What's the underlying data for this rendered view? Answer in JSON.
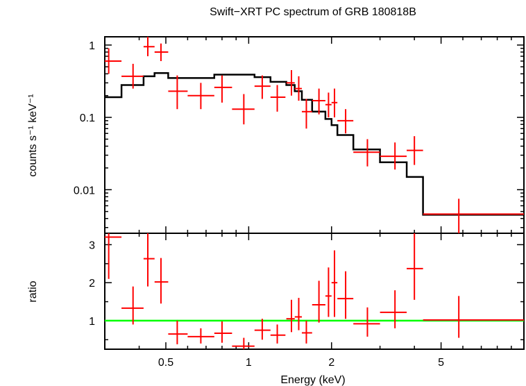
{
  "chart_data": {
    "type": "scatter",
    "title": "Swift−XRT PC spectrum of GRB 180818B",
    "xlabel": "Energy (keV)",
    "x_scale": "log",
    "xlim": [
      0.3,
      10
    ],
    "x_ticks": [
      0.5,
      1,
      2,
      5
    ],
    "x_tick_labels": [
      "0.5",
      "1",
      "2",
      "5"
    ],
    "colors": {
      "data": "#ff0000",
      "model": "#000000",
      "ratio_line": "#00ff00"
    },
    "panels": [
      {
        "name": "spectrum",
        "ylabel": "counts s⁻¹ keV⁻¹",
        "y_scale": "log",
        "ylim": [
          0.0025,
          1.3
        ],
        "y_ticks": [
          1,
          0.1,
          0.01
        ],
        "y_tick_labels": [
          "1",
          "0.1",
          "0.01"
        ],
        "data_points": [
          {
            "x": 0.31,
            "xlo": 0.3,
            "xhi": 0.345,
            "y": 0.6,
            "ylo": 0.4,
            "yhi": 0.9
          },
          {
            "x": 0.38,
            "xlo": 0.345,
            "xhi": 0.415,
            "y": 0.37,
            "ylo": 0.25,
            "yhi": 0.55
          },
          {
            "x": 0.43,
            "xlo": 0.415,
            "xhi": 0.455,
            "y": 0.95,
            "ylo": 0.7,
            "yhi": 1.3
          },
          {
            "x": 0.48,
            "xlo": 0.455,
            "xhi": 0.51,
            "y": 0.8,
            "ylo": 0.6,
            "yhi": 1.05
          },
          {
            "x": 0.55,
            "xlo": 0.51,
            "xhi": 0.6,
            "y": 0.23,
            "ylo": 0.13,
            "yhi": 0.38
          },
          {
            "x": 0.67,
            "xlo": 0.6,
            "xhi": 0.75,
            "y": 0.2,
            "ylo": 0.13,
            "yhi": 0.3
          },
          {
            "x": 0.8,
            "xlo": 0.75,
            "xhi": 0.87,
            "y": 0.26,
            "ylo": 0.16,
            "yhi": 0.38
          },
          {
            "x": 0.96,
            "xlo": 0.87,
            "xhi": 1.05,
            "y": 0.13,
            "ylo": 0.08,
            "yhi": 0.21
          },
          {
            "x": 1.12,
            "xlo": 1.05,
            "xhi": 1.2,
            "y": 0.27,
            "ylo": 0.18,
            "yhi": 0.38
          },
          {
            "x": 1.27,
            "xlo": 1.2,
            "xhi": 1.36,
            "y": 0.19,
            "ylo": 0.12,
            "yhi": 0.28
          },
          {
            "x": 1.43,
            "xlo": 1.37,
            "xhi": 1.47,
            "y": 0.3,
            "ylo": 0.2,
            "yhi": 0.45
          },
          {
            "x": 1.52,
            "xlo": 1.47,
            "xhi": 1.56,
            "y": 0.25,
            "ylo": 0.17,
            "yhi": 0.37
          },
          {
            "x": 1.62,
            "xlo": 1.56,
            "xhi": 1.7,
            "y": 0.12,
            "ylo": 0.07,
            "yhi": 0.18
          },
          {
            "x": 1.8,
            "xlo": 1.7,
            "xhi": 1.9,
            "y": 0.17,
            "ylo": 0.11,
            "yhi": 0.25
          },
          {
            "x": 1.95,
            "xlo": 1.9,
            "xhi": 2.0,
            "y": 0.15,
            "ylo": 0.1,
            "yhi": 0.22
          },
          {
            "x": 2.05,
            "xlo": 2.0,
            "xhi": 2.1,
            "y": 0.16,
            "ylo": 0.1,
            "yhi": 0.25
          },
          {
            "x": 2.25,
            "xlo": 2.1,
            "xhi": 2.4,
            "y": 0.09,
            "ylo": 0.06,
            "yhi": 0.13
          },
          {
            "x": 2.7,
            "xlo": 2.4,
            "xhi": 3.0,
            "y": 0.033,
            "ylo": 0.021,
            "yhi": 0.05
          },
          {
            "x": 3.4,
            "xlo": 3.0,
            "xhi": 3.75,
            "y": 0.029,
            "ylo": 0.019,
            "yhi": 0.045
          },
          {
            "x": 4.0,
            "xlo": 3.75,
            "xhi": 4.3,
            "y": 0.035,
            "ylo": 0.022,
            "yhi": 0.055
          },
          {
            "x": 5.8,
            "xlo": 4.3,
            "xhi": 10.0,
            "y": 0.0046,
            "ylo": 0.0025,
            "yhi": 0.0075
          }
        ],
        "model_steps": [
          {
            "xlo": 0.3,
            "xhi": 0.345,
            "y": 0.19
          },
          {
            "xlo": 0.345,
            "xhi": 0.415,
            "y": 0.28
          },
          {
            "xlo": 0.415,
            "xhi": 0.455,
            "y": 0.37
          },
          {
            "xlo": 0.455,
            "xhi": 0.51,
            "y": 0.41
          },
          {
            "xlo": 0.51,
            "xhi": 0.75,
            "y": 0.35
          },
          {
            "xlo": 0.75,
            "xhi": 1.05,
            "y": 0.39
          },
          {
            "xlo": 1.05,
            "xhi": 1.2,
            "y": 0.36
          },
          {
            "xlo": 1.2,
            "xhi": 1.37,
            "y": 0.31
          },
          {
            "xlo": 1.37,
            "xhi": 1.47,
            "y": 0.28
          },
          {
            "xlo": 1.47,
            "xhi": 1.56,
            "y": 0.23
          },
          {
            "xlo": 1.56,
            "xhi": 1.7,
            "y": 0.175
          },
          {
            "xlo": 1.7,
            "xhi": 1.9,
            "y": 0.12
          },
          {
            "xlo": 1.9,
            "xhi": 2.0,
            "y": 0.095
          },
          {
            "xlo": 2.0,
            "xhi": 2.1,
            "y": 0.078
          },
          {
            "xlo": 2.1,
            "xhi": 2.4,
            "y": 0.057
          },
          {
            "xlo": 2.4,
            "xhi": 3.0,
            "y": 0.036
          },
          {
            "xlo": 3.0,
            "xhi": 3.75,
            "y": 0.024
          },
          {
            "xlo": 3.75,
            "xhi": 4.3,
            "y": 0.015
          },
          {
            "xlo": 4.3,
            "xhi": 10.0,
            "y": 0.0045
          }
        ]
      },
      {
        "name": "ratio",
        "ylabel": "ratio",
        "y_scale": "linear",
        "ylim": [
          0.25,
          3.3
        ],
        "y_ticks": [
          1,
          2,
          3
        ],
        "y_tick_labels": [
          "1",
          "2",
          "3"
        ],
        "reference_line": 1.0,
        "data_points": [
          {
            "x": 0.31,
            "xlo": 0.3,
            "xhi": 0.345,
            "y": 3.2,
            "ylo": 2.1,
            "yhi": 3.3
          },
          {
            "x": 0.38,
            "xlo": 0.345,
            "xhi": 0.415,
            "y": 1.33,
            "ylo": 0.9,
            "yhi": 1.9
          },
          {
            "x": 0.43,
            "xlo": 0.415,
            "xhi": 0.455,
            "y": 2.63,
            "ylo": 1.9,
            "yhi": 3.3
          },
          {
            "x": 0.48,
            "xlo": 0.455,
            "xhi": 0.51,
            "y": 2.02,
            "ylo": 1.45,
            "yhi": 2.65
          },
          {
            "x": 0.55,
            "xlo": 0.51,
            "xhi": 0.6,
            "y": 0.65,
            "ylo": 0.38,
            "yhi": 1.0
          },
          {
            "x": 0.67,
            "xlo": 0.6,
            "xhi": 0.75,
            "y": 0.58,
            "ylo": 0.4,
            "yhi": 0.8
          },
          {
            "x": 0.8,
            "xlo": 0.75,
            "xhi": 0.87,
            "y": 0.67,
            "ylo": 0.42,
            "yhi": 0.98
          },
          {
            "x": 0.96,
            "xlo": 0.87,
            "xhi": 1.05,
            "y": 0.33,
            "ylo": 0.25,
            "yhi": 0.55
          },
          {
            "x": 1.12,
            "xlo": 1.05,
            "xhi": 1.2,
            "y": 0.75,
            "ylo": 0.5,
            "yhi": 1.05
          },
          {
            "x": 1.27,
            "xlo": 1.2,
            "xhi": 1.36,
            "y": 0.62,
            "ylo": 0.4,
            "yhi": 0.9
          },
          {
            "x": 1.43,
            "xlo": 1.37,
            "xhi": 1.47,
            "y": 1.05,
            "ylo": 0.7,
            "yhi": 1.55
          },
          {
            "x": 1.52,
            "xlo": 1.47,
            "xhi": 1.56,
            "y": 1.1,
            "ylo": 0.75,
            "yhi": 1.6
          },
          {
            "x": 1.62,
            "xlo": 1.56,
            "xhi": 1.7,
            "y": 0.68,
            "ylo": 0.4,
            "yhi": 1.0
          },
          {
            "x": 1.8,
            "xlo": 1.7,
            "xhi": 1.9,
            "y": 1.42,
            "ylo": 0.95,
            "yhi": 2.05
          },
          {
            "x": 1.95,
            "xlo": 1.9,
            "xhi": 2.0,
            "y": 1.65,
            "ylo": 1.1,
            "yhi": 2.4
          },
          {
            "x": 2.05,
            "xlo": 2.0,
            "xhi": 2.1,
            "y": 2.0,
            "ylo": 1.1,
            "yhi": 2.85
          },
          {
            "x": 2.25,
            "xlo": 2.1,
            "xhi": 2.4,
            "y": 1.58,
            "ylo": 1.05,
            "yhi": 2.3
          },
          {
            "x": 2.7,
            "xlo": 2.4,
            "xhi": 3.0,
            "y": 0.92,
            "ylo": 0.58,
            "yhi": 1.35
          },
          {
            "x": 3.4,
            "xlo": 3.0,
            "xhi": 3.75,
            "y": 1.22,
            "ylo": 0.8,
            "yhi": 1.8
          },
          {
            "x": 4.0,
            "xlo": 3.75,
            "xhi": 4.3,
            "y": 2.37,
            "ylo": 1.55,
            "yhi": 3.3
          },
          {
            "x": 5.8,
            "xlo": 4.3,
            "xhi": 10.0,
            "y": 1.02,
            "ylo": 0.55,
            "yhi": 1.65
          }
        ]
      }
    ]
  }
}
